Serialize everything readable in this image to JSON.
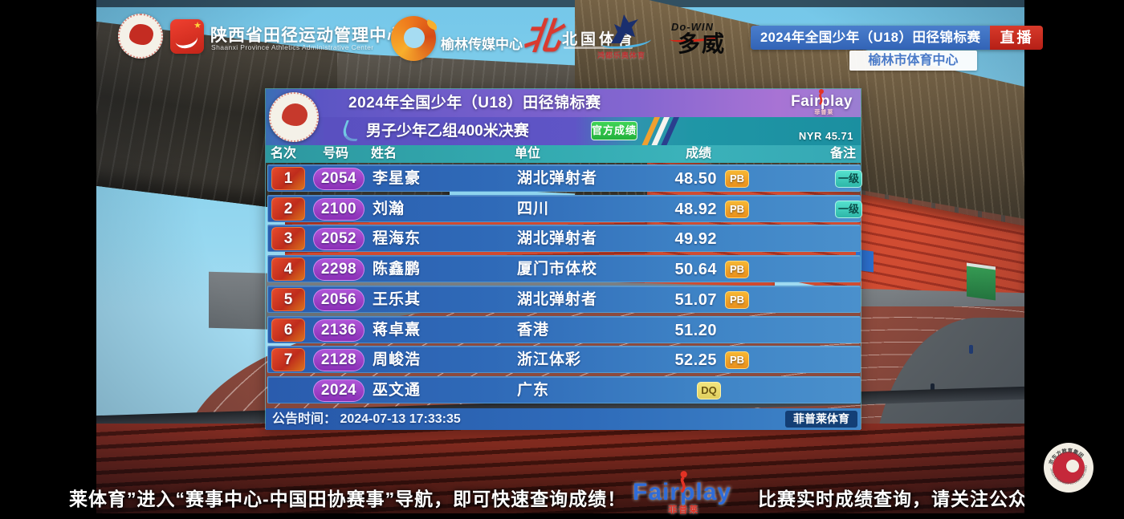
{
  "header_bar": {
    "org": {
      "name": "陕西省田径运动管理中心",
      "sub": "Shaanxi Province Athletics Administrative Center"
    },
    "media_center": "榆林传媒中心",
    "beiguo": {
      "mark": "北",
      "name": "北国体育"
    },
    "hongdu": {
      "name": "鸿都乐奥体育"
    },
    "dowin": {
      "en": "Do-WIN",
      "cn": "多威"
    }
  },
  "live": {
    "title": "2024年全国少年（U18）田径锦标赛",
    "label": "直播",
    "venue": "榆林市体育中心"
  },
  "scoreboard": {
    "title": "2024年全国少年（U18）田径锦标赛",
    "subtitle": "男子少年乙组400米决赛",
    "official": "官方成绩",
    "record": "NYR 45.71",
    "brand": "Fairplay",
    "brand_sub": "菲普莱",
    "columns": [
      "名次",
      "号码",
      "姓名",
      "单位",
      "成绩",
      "备注"
    ],
    "rows": [
      {
        "rank": "1",
        "bib": "2054",
        "name": "李星豪",
        "team": "湖北弹射者",
        "time": "48.50",
        "tag": "PB",
        "note": "一级"
      },
      {
        "rank": "2",
        "bib": "2100",
        "name": "刘瀚",
        "team": "四川",
        "time": "48.92",
        "tag": "PB",
        "note": "一级"
      },
      {
        "rank": "3",
        "bib": "2052",
        "name": "程海东",
        "team": "湖北弹射者",
        "time": "49.92",
        "tag": "",
        "note": ""
      },
      {
        "rank": "4",
        "bib": "2298",
        "name": "陈鑫鹏",
        "team": "厦门市体校",
        "time": "50.64",
        "tag": "PB",
        "note": ""
      },
      {
        "rank": "5",
        "bib": "2056",
        "name": "王乐其",
        "team": "湖北弹射者",
        "time": "51.07",
        "tag": "PB",
        "note": ""
      },
      {
        "rank": "6",
        "bib": "2136",
        "name": "蒋卓熹",
        "team": "香港",
        "time": "51.20",
        "tag": "",
        "note": ""
      },
      {
        "rank": "7",
        "bib": "2128",
        "name": "周峻浩",
        "team": "浙江体彩",
        "time": "52.25",
        "tag": "PB",
        "note": ""
      },
      {
        "rank": "",
        "bib": "2024",
        "name": "巫文通",
        "team": "广东",
        "time": "",
        "tag": "DQ",
        "note": ""
      }
    ],
    "announcement": "公告时间：  2024-07-13 17:33:35",
    "provider": "菲普莱体育"
  },
  "ticker": {
    "left": "莱体育”进入“赛事中心-中国田协赛事”导航，即可快速查询成绩！",
    "fairplay": "Fairplay",
    "fairplay_sub": "菲普莱",
    "right": "比赛实时成绩查询，请关注公众号“菲普莱"
  },
  "corner_logo": {
    "top_text": "京东方教育集团",
    "ring_text": "JINGDONGFANG EDUCATION GROUP"
  },
  "colors": {
    "row_blue": "#2f6ab8",
    "header_teal": "#2e9ca4",
    "title_purple": "#6f5cc9",
    "live_blue": "#3a70c2",
    "live_red": "#c52a20",
    "official_green": "#2ec84e",
    "pb_orange": "#efa21f",
    "dq_yellow": "#ecdf72",
    "grade_teal": "#3ed0c0",
    "sky": "#86d0ec"
  }
}
